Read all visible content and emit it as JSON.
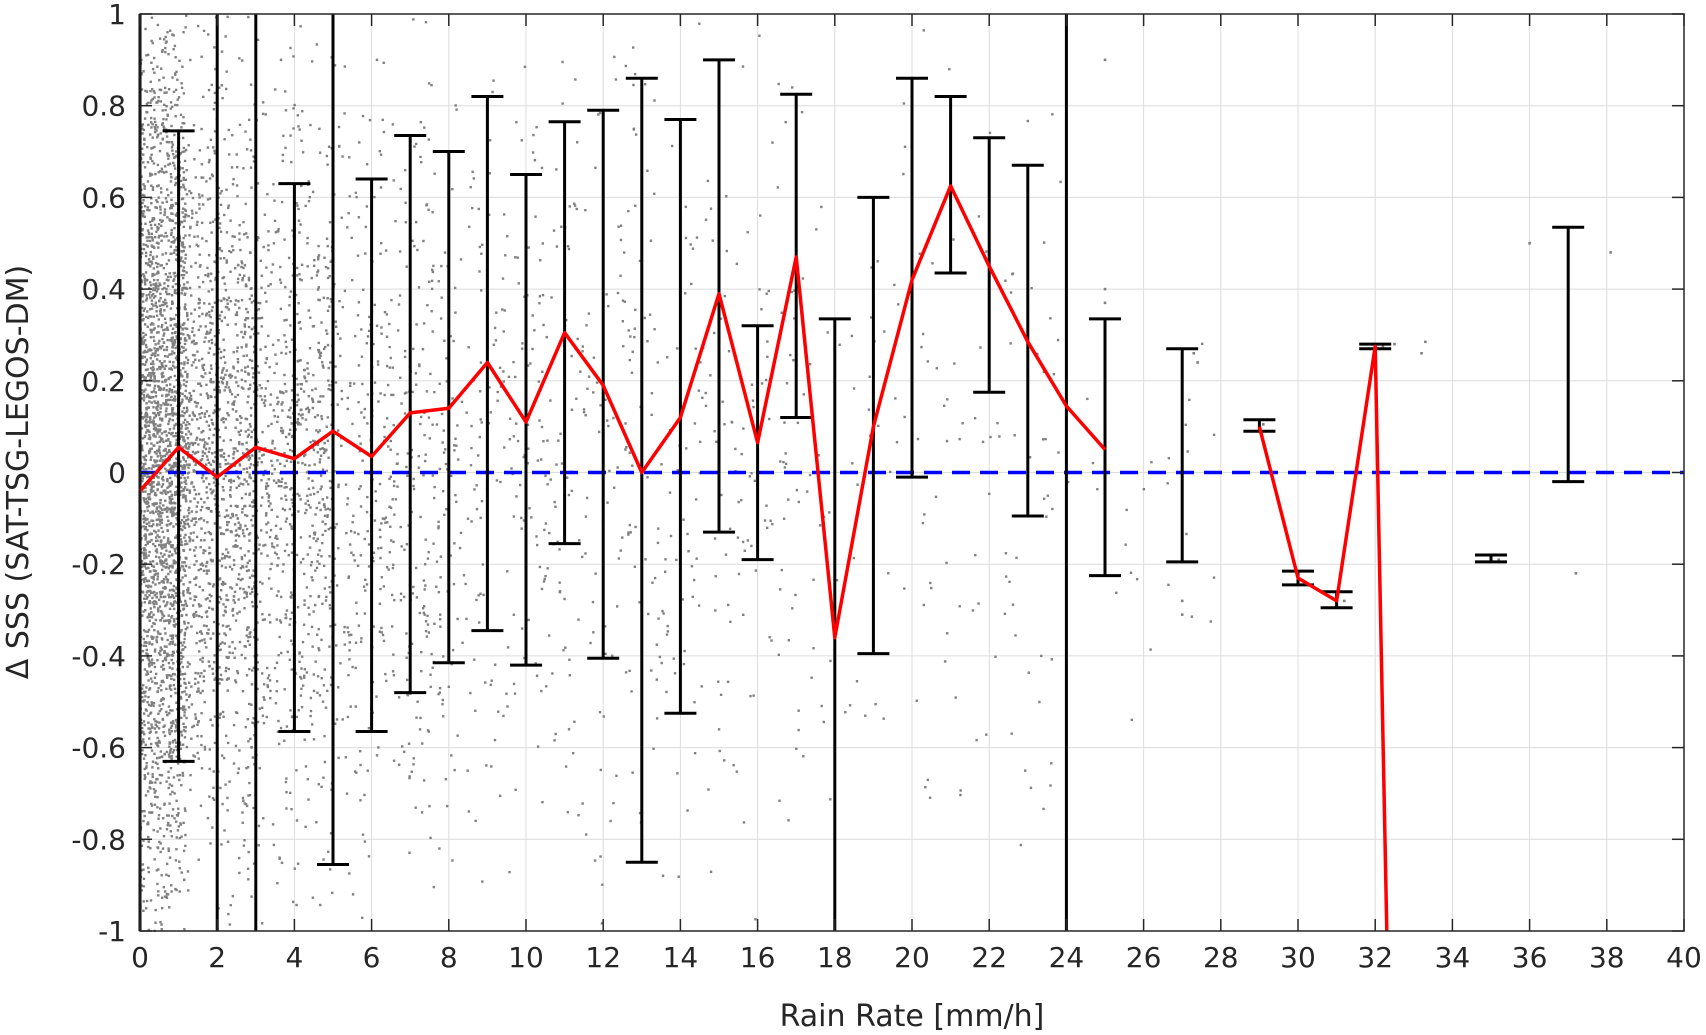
{
  "chart_data": {
    "type": "scatter",
    "title": "",
    "xlabel": "Rain Rate [mm/h]",
    "ylabel": "Δ SSS (SAT-TSG-LEGOS-DM)",
    "xlim": [
      0,
      40
    ],
    "ylim": [
      -1,
      1
    ],
    "x_ticks": [
      0,
      2,
      4,
      6,
      8,
      10,
      12,
      14,
      16,
      18,
      20,
      22,
      24,
      26,
      28,
      30,
      32,
      34,
      36,
      38,
      40
    ],
    "y_ticks": [
      -1,
      -0.8,
      -0.6,
      -0.4,
      -0.2,
      0,
      0.2,
      0.4,
      0.6,
      0.8,
      1
    ],
    "y_tick_labels": [
      "-1",
      "-0.8",
      "-0.6",
      "-0.4",
      "-0.2",
      "0",
      "0.2",
      "0.4",
      "0.6",
      "0.8",
      "1"
    ],
    "grid": true,
    "colors": {
      "scatter": "#808080",
      "mean_line": "#ff0000",
      "error_bars": "#000000",
      "zero_line": "#0000ff"
    },
    "mean_line": {
      "x": [
        0,
        1,
        2,
        3,
        4,
        5,
        6,
        7,
        8,
        9,
        10,
        11,
        12,
        13,
        14,
        15,
        16,
        17,
        18,
        19,
        20,
        21,
        22,
        23,
        24,
        25
      ],
      "y": [
        -0.04,
        0.055,
        -0.01,
        0.055,
        0.03,
        0.09,
        0.035,
        0.13,
        0.14,
        0.24,
        0.11,
        0.305,
        0.19,
        0.0,
        0.12,
        0.39,
        0.065,
        0.47,
        -0.36,
        0.1,
        0.42,
        0.625,
        0.45,
        0.285,
        0.145,
        0.05
      ]
    },
    "mean_line_segment_2": {
      "x": [
        29,
        30,
        31,
        32,
        32.3
      ],
      "y": [
        0.1,
        -0.23,
        -0.28,
        0.275,
        -1.0
      ]
    },
    "error_bars": [
      {
        "x": 0,
        "low": -1.0,
        "high": 1.0
      },
      {
        "x": 1,
        "low": -0.63,
        "high": 0.745
      },
      {
        "x": 2,
        "low": -1.0,
        "high": 1.0
      },
      {
        "x": 3,
        "low": -1.0,
        "high": 1.0
      },
      {
        "x": 4,
        "low": -0.565,
        "high": 0.63
      },
      {
        "x": 5,
        "low": -0.855,
        "high": 1.0
      },
      {
        "x": 6,
        "low": -0.565,
        "high": 0.64
      },
      {
        "x": 7,
        "low": -0.48,
        "high": 0.735
      },
      {
        "x": 8,
        "low": -0.415,
        "high": 0.7
      },
      {
        "x": 9,
        "low": -0.345,
        "high": 0.82
      },
      {
        "x": 10,
        "low": -0.42,
        "high": 0.65
      },
      {
        "x": 11,
        "low": -0.155,
        "high": 0.765
      },
      {
        "x": 12,
        "low": -0.405,
        "high": 0.79
      },
      {
        "x": 13,
        "low": -0.85,
        "high": 0.86
      },
      {
        "x": 14,
        "low": -0.525,
        "high": 0.77
      },
      {
        "x": 15,
        "low": -0.13,
        "high": 0.9
      },
      {
        "x": 16,
        "low": -0.19,
        "high": 0.32
      },
      {
        "x": 17,
        "low": 0.12,
        "high": 0.825
      },
      {
        "x": 18,
        "low": -1.0,
        "high": 0.335
      },
      {
        "x": 19,
        "low": -0.395,
        "high": 0.6
      },
      {
        "x": 20,
        "low": -0.01,
        "high": 0.86
      },
      {
        "x": 21,
        "low": 0.435,
        "high": 0.82
      },
      {
        "x": 22,
        "low": 0.175,
        "high": 0.73
      },
      {
        "x": 23,
        "low": -0.095,
        "high": 0.67
      },
      {
        "x": 24,
        "low": -1.0,
        "high": 1.0
      },
      {
        "x": 25,
        "low": -0.225,
        "high": 0.335
      },
      {
        "x": 27,
        "low": -0.195,
        "high": 0.27
      },
      {
        "x": 29,
        "low": 0.09,
        "high": 0.115
      },
      {
        "x": 30,
        "low": -0.245,
        "high": -0.215
      },
      {
        "x": 31,
        "low": -0.295,
        "high": -0.26
      },
      {
        "x": 32,
        "low": 0.27,
        "high": 0.28
      },
      {
        "x": 35,
        "low": -0.195,
        "high": -0.18
      },
      {
        "x": 37,
        "low": -0.02,
        "high": 0.535
      }
    ],
    "zero_reference": 0,
    "scatter_clusters": [
      {
        "x_min": 0,
        "x_max": 1.2,
        "count": 2600,
        "spread": 0.5,
        "clip": 1.0
      },
      {
        "x_min": 1.2,
        "x_max": 3,
        "count": 1300,
        "spread": 0.4,
        "clip": 1.0
      },
      {
        "x_min": 3,
        "x_max": 5,
        "count": 800,
        "spread": 0.4,
        "clip": 1.0
      },
      {
        "x_min": 5,
        "x_max": 8,
        "count": 500,
        "spread": 0.4,
        "clip": 1.0
      },
      {
        "x_min": 8,
        "x_max": 13,
        "count": 380,
        "spread": 0.42,
        "clip": 1.0
      },
      {
        "x_min": 13,
        "x_max": 17.5,
        "count": 220,
        "spread": 0.45,
        "clip": 1.0
      },
      {
        "x_min": 17.5,
        "x_max": 24,
        "count": 140,
        "spread": 0.45,
        "clip": 1.0
      },
      {
        "x_min": 24,
        "x_max": 28,
        "count": 25,
        "spread": 0.25,
        "clip": 1.0
      }
    ],
    "scatter_points": [
      {
        "x": 25,
        "y": 0.9
      },
      {
        "x": 25,
        "y": 0.4
      },
      {
        "x": 25,
        "y": 0.37
      },
      {
        "x": 25,
        "y": -0.03
      },
      {
        "x": 27.3,
        "y": 0.26
      },
      {
        "x": 27.4,
        "y": 0.24
      },
      {
        "x": 27,
        "y": -0.28
      },
      {
        "x": 27,
        "y": -0.31
      },
      {
        "x": 29,
        "y": 0.1
      },
      {
        "x": 29.1,
        "y": 0.105
      },
      {
        "x": 30,
        "y": -0.22
      },
      {
        "x": 30.1,
        "y": -0.235
      },
      {
        "x": 31,
        "y": -0.27
      },
      {
        "x": 31.2,
        "y": -0.28
      },
      {
        "x": 32.2,
        "y": 0.275
      },
      {
        "x": 32.5,
        "y": 0.28
      },
      {
        "x": 33.3,
        "y": 0.285
      },
      {
        "x": 35,
        "y": -0.185
      },
      {
        "x": 35.2,
        "y": -0.19
      },
      {
        "x": 36,
        "y": 0.5
      },
      {
        "x": 37,
        "y": 0.26
      },
      {
        "x": 37.2,
        "y": -0.22
      },
      {
        "x": 38.1,
        "y": 0.48
      },
      {
        "x": 33.2,
        "y": 0.26
      }
    ]
  }
}
